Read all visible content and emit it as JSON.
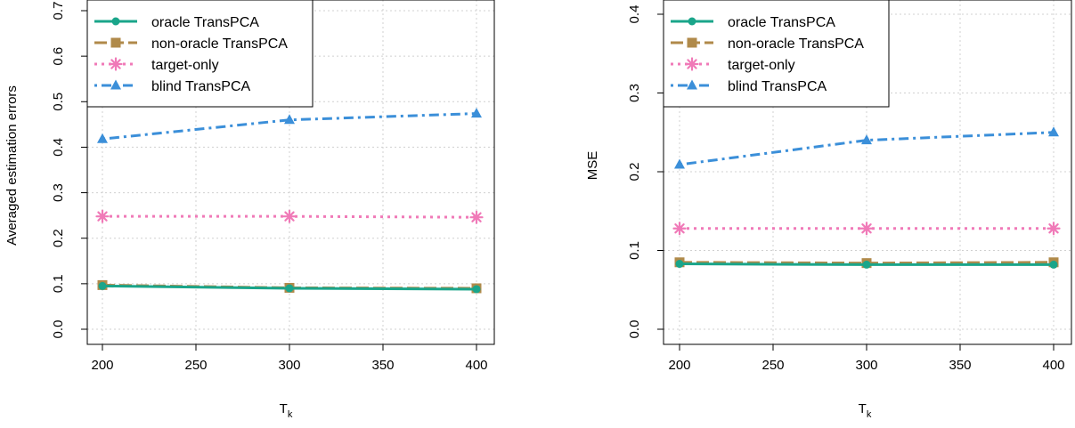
{
  "chart_data": [
    {
      "type": "line",
      "ylabel": "Averaged estimation errors",
      "xlabel": "T",
      "xlabel_sub": "k",
      "x": [
        200,
        300,
        400
      ],
      "xlim": [
        200,
        400
      ],
      "ylim": [
        0,
        0.7
      ],
      "xticks": [
        "200",
        "250",
        "300",
        "350",
        "400"
      ],
      "yticks": [
        "0.0",
        "0.1",
        "0.2",
        "0.3",
        "0.4",
        "0.5",
        "0.6",
        "0.7"
      ],
      "grid": true,
      "legend_position": "top-left",
      "series": [
        {
          "name": "oracle TransPCA",
          "values": [
            0.095,
            0.09,
            0.088
          ],
          "color": "#1aa58a",
          "dash": "solid",
          "marker": "circle"
        },
        {
          "name": "non-oracle TransPCA",
          "values": [
            0.097,
            0.091,
            0.09
          ],
          "color": "#b08a4a",
          "dash": "longdash",
          "marker": "square"
        },
        {
          "name": "target-only",
          "values": [
            0.248,
            0.248,
            0.246
          ],
          "color": "#f07ab8",
          "dash": "dotted",
          "marker": "asterisk"
        },
        {
          "name": "blind TransPCA",
          "values": [
            0.418,
            0.46,
            0.474
          ],
          "color": "#3b8fd9",
          "dash": "dotdash",
          "marker": "triangle"
        }
      ]
    },
    {
      "type": "line",
      "ylabel": "MSE",
      "xlabel": "T",
      "xlabel_sub": "k",
      "x": [
        200,
        300,
        400
      ],
      "xlim": [
        200,
        400
      ],
      "ylim": [
        0,
        0.4
      ],
      "xticks": [
        "200",
        "250",
        "300",
        "350",
        "400"
      ],
      "yticks": [
        "0.0",
        "0.1",
        "0.2",
        "0.3",
        "0.4"
      ],
      "grid": true,
      "legend_position": "top-left",
      "series": [
        {
          "name": "oracle TransPCA",
          "values": [
            0.083,
            0.082,
            0.082
          ],
          "color": "#1aa58a",
          "dash": "solid",
          "marker": "circle"
        },
        {
          "name": "non-oracle TransPCA",
          "values": [
            0.085,
            0.084,
            0.085
          ],
          "color": "#b08a4a",
          "dash": "longdash",
          "marker": "square"
        },
        {
          "name": "target-only",
          "values": [
            0.128,
            0.128,
            0.128
          ],
          "color": "#f07ab8",
          "dash": "dotted",
          "marker": "asterisk"
        },
        {
          "name": "blind TransPCA",
          "values": [
            0.209,
            0.24,
            0.25
          ],
          "color": "#3b8fd9",
          "dash": "dotdash",
          "marker": "triangle"
        }
      ]
    }
  ]
}
